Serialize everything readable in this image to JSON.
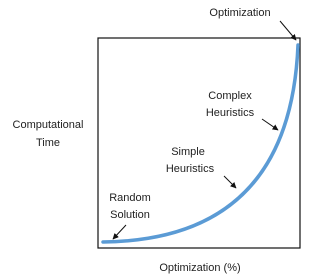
{
  "axes": {
    "x_label": "Optimization (%)",
    "y_label": [
      "Computational",
      "Time"
    ]
  },
  "annotations": [
    {
      "lines": [
        "Optimization"
      ]
    },
    {
      "lines": [
        "Complex",
        "Heuristics"
      ]
    },
    {
      "lines": [
        "Simple",
        "Heuristics"
      ]
    },
    {
      "lines": [
        "Random",
        "Solution"
      ]
    }
  ]
}
